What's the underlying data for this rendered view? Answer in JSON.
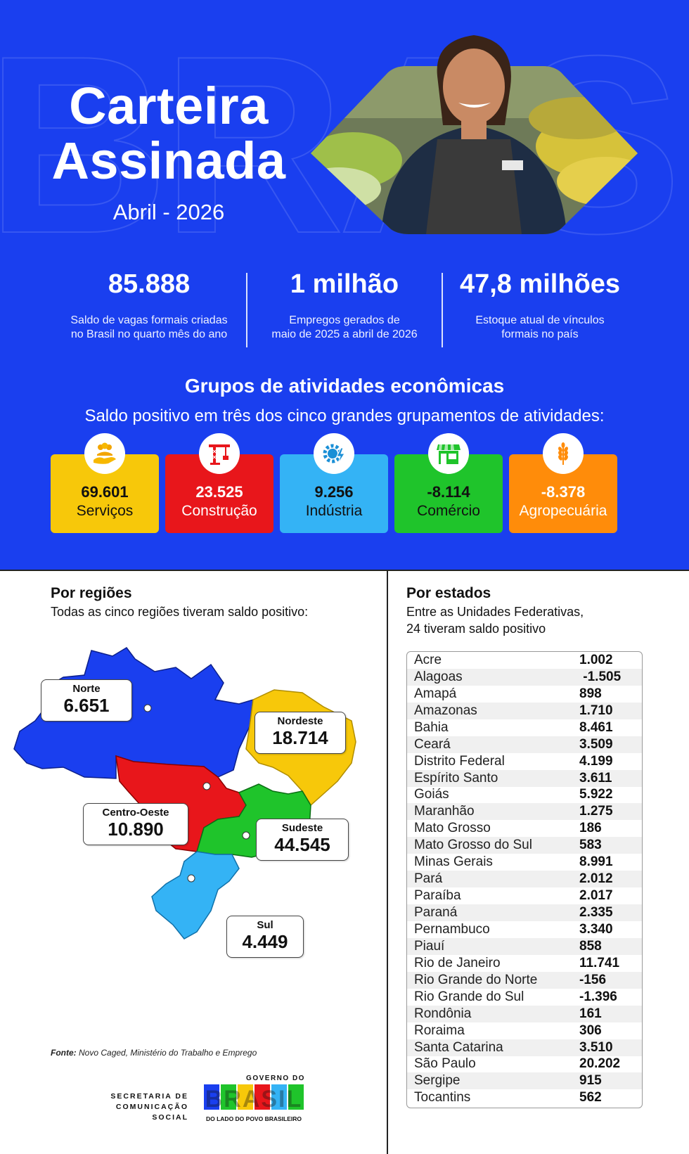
{
  "header": {
    "title_line1": "Carteira",
    "title_line2": "Assinada",
    "period": "Abril - 2026",
    "bg_watermark": "BRASIL"
  },
  "stats": [
    {
      "value": "85.888",
      "desc_line1": "Saldo de vagas formais criadas",
      "desc_line2": "no Brasil no quarto mês do ano"
    },
    {
      "value": "1 milhão",
      "desc_line1": "Empregos gerados de",
      "desc_line2": "maio de 2025 a abril de 2026"
    },
    {
      "value": "47,8 milhões",
      "desc_line1": "Estoque atual de vínculos",
      "desc_line2": "formais no país"
    }
  ],
  "groups": {
    "title": "Grupos de atividades econômicas",
    "subtitle": "Saldo positivo em três dos cinco grandes grupamentos de atividades:",
    "cards": [
      {
        "value": "69.601",
        "label": "Serviços",
        "color": "#f7c80a",
        "icon": "hand-people-icon"
      },
      {
        "value": "23.525",
        "label": "Construção",
        "color": "#e8161b",
        "icon": "crane-icon"
      },
      {
        "value": "9.256",
        "label": "Indústria",
        "color": "#34b3f5",
        "icon": "gear-bolt-icon"
      },
      {
        "value": "-8.114",
        "label": "Comércio",
        "color": "#1fc42b",
        "icon": "store-icon"
      },
      {
        "value": "-8.378",
        "label": "Agropecuária",
        "color": "#ff8c0a",
        "icon": "wheat-icon"
      }
    ]
  },
  "regions": {
    "title": "Por regiões",
    "subtitle": "Todas as cinco regiões tiveram saldo positivo:",
    "items": [
      {
        "name": "Norte",
        "value": "6.651",
        "color": "#1a3fef"
      },
      {
        "name": "Nordeste",
        "value": "18.714",
        "color": "#f7c80a"
      },
      {
        "name": "Centro-Oeste",
        "value": "10.890",
        "color": "#e8161b"
      },
      {
        "name": "Sudeste",
        "value": "44.545",
        "color": "#1fc42b"
      },
      {
        "name": "Sul",
        "value": "4.449",
        "color": "#34b3f5"
      }
    ]
  },
  "states": {
    "title": "Por estados",
    "subtitle_line1": "Entre as Unidades Federativas,",
    "subtitle_line2": "24 tiveram saldo positivo",
    "rows": [
      {
        "name": "Acre",
        "value": "1.002"
      },
      {
        "name": "Alagoas",
        "value": " -1.505"
      },
      {
        "name": "Amapá",
        "value": "898"
      },
      {
        "name": "Amazonas",
        "value": "1.710"
      },
      {
        "name": "Bahia",
        "value": "8.461"
      },
      {
        "name": "Ceará",
        "value": "3.509"
      },
      {
        "name": "Distrito Federal",
        "value": "4.199"
      },
      {
        "name": "Espírito Santo",
        "value": "3.611"
      },
      {
        "name": "Goiás",
        "value": "5.922"
      },
      {
        "name": "Maranhão",
        "value": "1.275"
      },
      {
        "name": "Mato Grosso",
        "value": "186"
      },
      {
        "name": "Mato Grosso do Sul",
        "value": "583"
      },
      {
        "name": "Minas Gerais",
        "value": "8.991"
      },
      {
        "name": "Pará",
        "value": "2.012"
      },
      {
        "name": "Paraíba",
        "value": "2.017"
      },
      {
        "name": "Paraná",
        "value": "2.335"
      },
      {
        "name": "Pernambuco",
        "value": "3.340"
      },
      {
        "name": "Piauí",
        "value": "858"
      },
      {
        "name": "Rio de Janeiro",
        "value": "11.741"
      },
      {
        "name": "Rio Grande do Norte",
        "value": "-156"
      },
      {
        "name": "Rio Grande do Sul",
        "value": "-1.396"
      },
      {
        "name": "Rondônia",
        "value": "161"
      },
      {
        "name": "Roraima",
        "value": "306"
      },
      {
        "name": "Santa Catarina",
        "value": "3.510"
      },
      {
        "name": "São Paulo",
        "value": "20.202"
      },
      {
        "name": "Sergipe",
        "value": "915"
      },
      {
        "name": "Tocantins",
        "value": "562"
      }
    ]
  },
  "footer": {
    "source_label": "Fonte:",
    "source_text": "Novo Caged, Ministério do Trabalho e Emprego",
    "secom_line1": "SECRETARIA DE",
    "secom_line2": "COMUNICAÇÃO SOCIAL",
    "gov_top": "GOVERNO DO",
    "gov_main": "BRASIL",
    "gov_bottom": "DO LADO DO POVO BRASILEIRO"
  },
  "colors": {
    "primary_blue": "#1a3fef",
    "yellow": "#f7c80a",
    "red": "#e8161b",
    "light_blue": "#34b3f5",
    "green": "#1fc42b",
    "orange": "#ff8c0a"
  }
}
